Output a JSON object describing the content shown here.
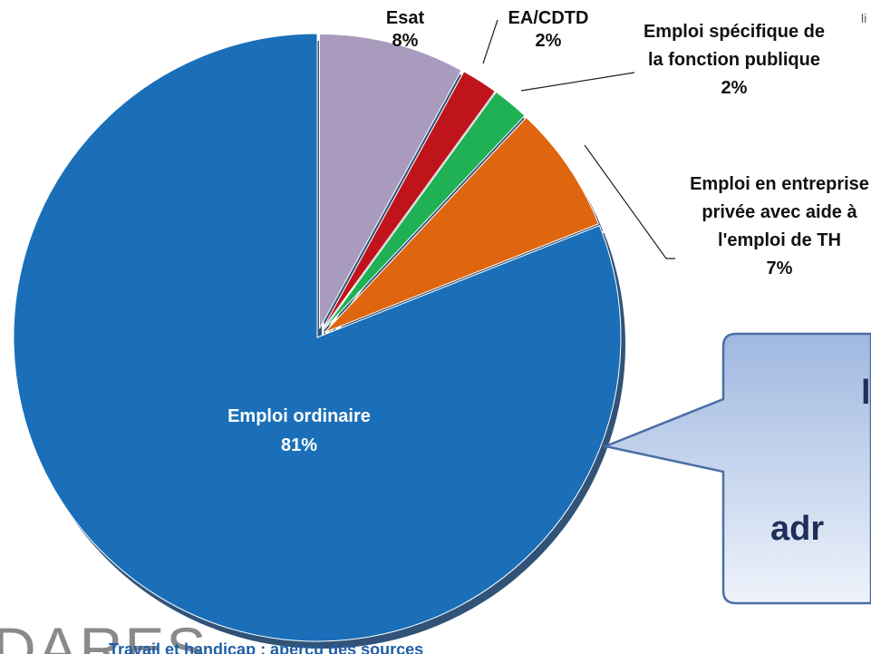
{
  "chart_data": {
    "type": "pie",
    "categories": [
      "Esat",
      "EA/CDTD",
      "Emploi spécifique de la fonction publique",
      "Emploi en entreprise privée avec aide à l'emploi de TH",
      "Emploi ordinaire"
    ],
    "values": [
      8,
      2,
      2,
      7,
      81
    ],
    "value_labels": [
      "8%",
      "2%",
      "2%",
      "7%",
      "81%"
    ],
    "colors": [
      "#a99bbd",
      "#c0141c",
      "#1fb153",
      "#e0650f",
      "#1a6fb8"
    ],
    "annotations": [
      "li",
      "l",
      "adr",
      "DARES",
      "Travail et handicap : aperçu des sources"
    ]
  }
}
